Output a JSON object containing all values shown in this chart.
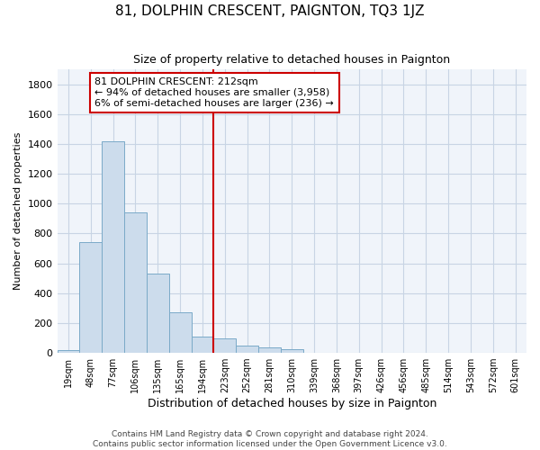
{
  "title": "81, DOLPHIN CRESCENT, PAIGNTON, TQ3 1JZ",
  "subtitle": "Size of property relative to detached houses in Paignton",
  "xlabel": "Distribution of detached houses by size in Paignton",
  "ylabel": "Number of detached properties",
  "footer_line1": "Contains HM Land Registry data © Crown copyright and database right 2024.",
  "footer_line2": "Contains public sector information licensed under the Open Government Licence v3.0.",
  "bin_labels": [
    "19sqm",
    "48sqm",
    "77sqm",
    "106sqm",
    "135sqm",
    "165sqm",
    "194sqm",
    "223sqm",
    "252sqm",
    "281sqm",
    "310sqm",
    "339sqm",
    "368sqm",
    "397sqm",
    "426sqm",
    "456sqm",
    "485sqm",
    "514sqm",
    "543sqm",
    "572sqm",
    "601sqm"
  ],
  "bar_values": [
    20,
    740,
    1420,
    940,
    530,
    270,
    110,
    95,
    50,
    35,
    25,
    3,
    3,
    3,
    3,
    3,
    3,
    3,
    3,
    3,
    3
  ],
  "bar_color": "#ccdcec",
  "bar_edge_color": "#7aaac8",
  "grid_color": "#c8d4e4",
  "background_color": "#ffffff",
  "axes_background": "#f0f4fa",
  "red_line_color": "#cc0000",
  "annotation_line1": "81 DOLPHIN CRESCENT: 212sqm",
  "annotation_line2": "← 94% of detached houses are smaller (3,958)",
  "annotation_line3": "6% of semi-detached houses are larger (236) →",
  "annotation_box_color": "#ffffff",
  "annotation_box_edge": "#cc0000",
  "ylim": [
    0,
    1900
  ],
  "yticks": [
    0,
    200,
    400,
    600,
    800,
    1000,
    1200,
    1400,
    1600,
    1800
  ],
  "title_fontsize": 11,
  "subtitle_fontsize": 9,
  "ylabel_fontsize": 8,
  "xlabel_fontsize": 9,
  "ytick_fontsize": 8,
  "xtick_fontsize": 7,
  "footer_fontsize": 6.5,
  "annot_fontsize": 8
}
